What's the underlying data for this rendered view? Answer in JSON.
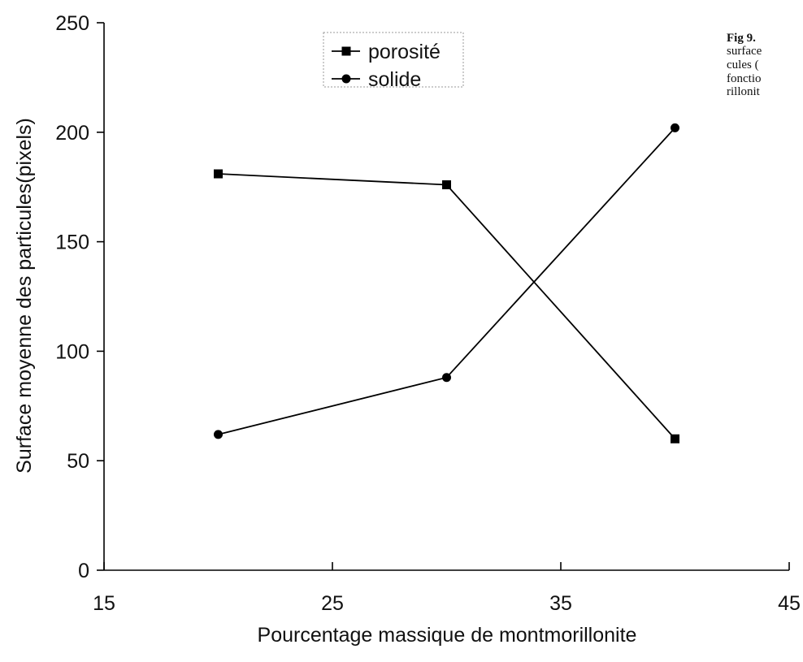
{
  "chart_data": {
    "type": "line",
    "xlabel": "Pourcentage massique de montmorillonite",
    "ylabel": "Surface moyenne des particules(pixels)",
    "xlim": [
      15,
      45
    ],
    "ylim": [
      0,
      250
    ],
    "x_ticks": [
      "15",
      "25",
      "35",
      "45"
    ],
    "y_ticks": [
      "0",
      "50",
      "100",
      "150",
      "200",
      "250"
    ],
    "grid": false,
    "legend_position": "top-center",
    "series": [
      {
        "name": "porosité",
        "marker": "square",
        "x": [
          20,
          30,
          40
        ],
        "y": [
          181,
          176,
          60
        ]
      },
      {
        "name": "solide",
        "marker": "circle",
        "x": [
          20,
          30,
          40
        ],
        "y": [
          62,
          88,
          202
        ]
      }
    ]
  },
  "caption": {
    "label": "Fig 9.",
    "lines": [
      "surface",
      "cules (",
      "fonctio",
      "rillonit"
    ]
  }
}
